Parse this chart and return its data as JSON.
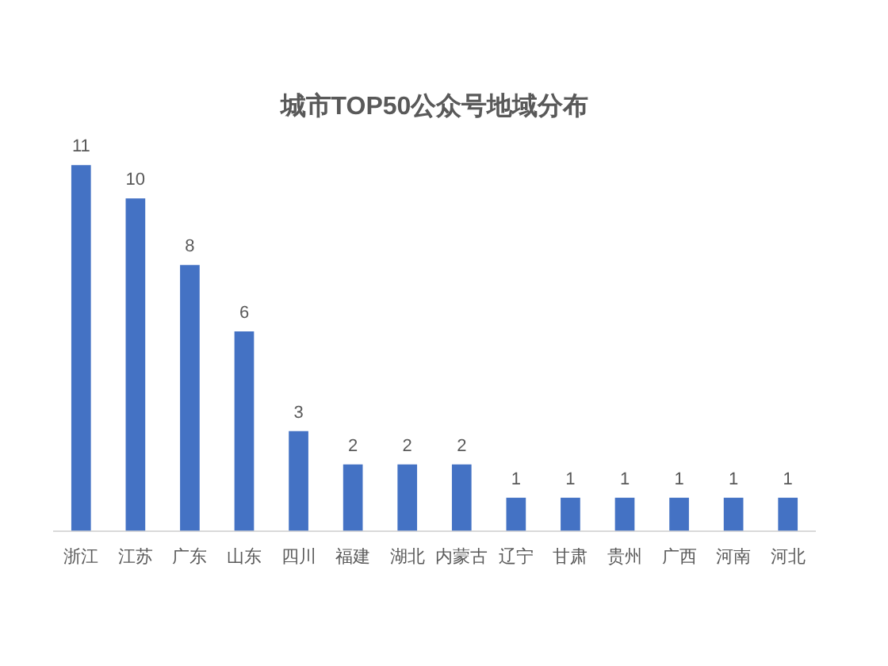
{
  "chart_data": {
    "type": "bar",
    "title": "城市TOP50公众号地域分布",
    "categories": [
      "浙江",
      "江苏",
      "广东",
      "山东",
      "四川",
      "福建",
      "湖北",
      "内蒙古",
      "辽宁",
      "甘肃",
      "贵州",
      "广西",
      "河南",
      "河北"
    ],
    "values": [
      11,
      10,
      8,
      6,
      3,
      2,
      2,
      2,
      1,
      1,
      1,
      1,
      1,
      1
    ],
    "color": "#4472c4",
    "data_labels": true
  }
}
